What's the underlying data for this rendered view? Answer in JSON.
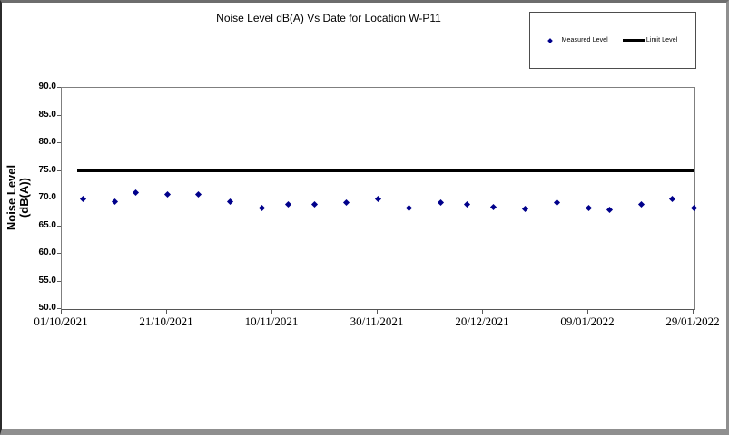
{
  "chart_data": {
    "type": "scatter",
    "title": "Noise Level dB(A) Vs Date for Location W-P11",
    "xlabel": "",
    "ylabel_lines": [
      "Noise Level",
      "(dB(A))"
    ],
    "ylim": [
      50.0,
      90.0
    ],
    "ytick_step": 5.0,
    "yticks": [
      90.0,
      85.0,
      80.0,
      75.0,
      70.0,
      65.0,
      60.0,
      55.0,
      50.0
    ],
    "xticks": [
      "01/10/2021",
      "21/10/2021",
      "10/11/2021",
      "30/11/2021",
      "20/12/2021",
      "09/01/2022",
      "29/01/2022"
    ],
    "grid": false,
    "legend_position": "top-right",
    "series": [
      {
        "name": "Measured Level",
        "type": "scatter",
        "marker": "diamond",
        "color": "#00008B",
        "points": [
          {
            "date": "05/10/2021",
            "value": 70.0
          },
          {
            "date": "11/10/2021",
            "value": 69.4
          },
          {
            "date": "15/10/2021",
            "value": 71.1
          },
          {
            "date": "21/10/2021",
            "value": 70.8
          },
          {
            "date": "27/10/2021",
            "value": 70.8
          },
          {
            "date": "02/11/2021",
            "value": 69.4
          },
          {
            "date": "08/11/2021",
            "value": 68.3
          },
          {
            "date": "13/11/2021",
            "value": 68.9
          },
          {
            "date": "18/11/2021",
            "value": 68.9
          },
          {
            "date": "24/11/2021",
            "value": 69.3
          },
          {
            "date": "30/11/2021",
            "value": 70.0
          },
          {
            "date": "06/12/2021",
            "value": 68.3
          },
          {
            "date": "12/12/2021",
            "value": 69.3
          },
          {
            "date": "17/12/2021",
            "value": 69.0
          },
          {
            "date": "22/12/2021",
            "value": 68.5
          },
          {
            "date": "28/12/2021",
            "value": 68.1
          },
          {
            "date": "03/01/2022",
            "value": 69.2
          },
          {
            "date": "09/01/2022",
            "value": 68.3
          },
          {
            "date": "13/01/2022",
            "value": 68.0
          },
          {
            "date": "19/01/2022",
            "value": 68.9
          },
          {
            "date": "25/01/2022",
            "value": 69.9
          },
          {
            "date": "29/01/2022",
            "value": 68.2
          }
        ]
      },
      {
        "name": "Limit Level",
        "type": "line",
        "color": "#000000",
        "value": 75.0,
        "from": "04/10/2021",
        "to": "29/01/2022",
        "line_width": 3
      }
    ]
  }
}
